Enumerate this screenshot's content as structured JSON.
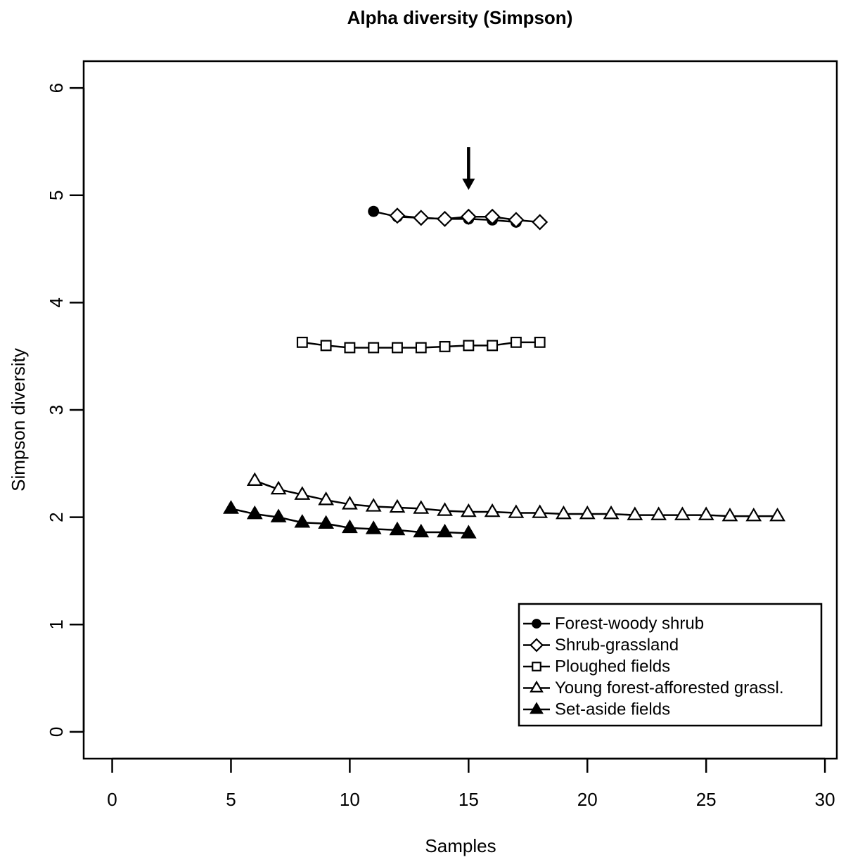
{
  "chart_data": {
    "type": "line",
    "title": "Alpha diversity (Simpson)",
    "xlabel": "Samples",
    "ylabel": "Simpson diversity",
    "xlim": [
      -1.2,
      30.5
    ],
    "ylim": [
      -0.25,
      6.25
    ],
    "xticks": [
      0,
      5,
      10,
      15,
      20,
      25,
      30
    ],
    "yticks": [
      0,
      1,
      2,
      3,
      4,
      5,
      6
    ],
    "xtick_labels": [
      "0",
      "5",
      "10",
      "15",
      "20",
      "25",
      "30"
    ],
    "ytick_labels": [
      "0",
      "1",
      "2",
      "3",
      "4",
      "5",
      "6"
    ],
    "grid": false,
    "legend_position": "bottom-right",
    "annotation": {
      "type": "arrow",
      "x": 15,
      "y_from": 5.45,
      "y_to": 5.05
    },
    "series": [
      {
        "name": "Forest-woody shrub",
        "marker": "circle-filled",
        "x": [
          11,
          12,
          13,
          14,
          15,
          16,
          17
        ],
        "y": [
          4.85,
          4.8,
          4.79,
          4.78,
          4.78,
          4.77,
          4.75
        ]
      },
      {
        "name": "Shrub-grassland",
        "marker": "diamond-open",
        "x": [
          12,
          13,
          14,
          15,
          16,
          17,
          18
        ],
        "y": [
          4.81,
          4.79,
          4.78,
          4.8,
          4.8,
          4.77,
          4.75
        ]
      },
      {
        "name": "Ploughed fields",
        "marker": "square-open",
        "x": [
          8,
          9,
          10,
          11,
          12,
          13,
          14,
          15,
          16,
          17,
          18
        ],
        "y": [
          3.63,
          3.6,
          3.58,
          3.58,
          3.58,
          3.58,
          3.59,
          3.6,
          3.6,
          3.63,
          3.63
        ]
      },
      {
        "name": "Young forest-afforested grassl.",
        "marker": "triangle-open",
        "x": [
          6,
          7,
          8,
          9,
          10,
          11,
          12,
          13,
          14,
          15,
          16,
          17,
          18,
          19,
          20,
          21,
          22,
          23,
          24,
          25,
          26,
          27,
          28
        ],
        "y": [
          2.34,
          2.26,
          2.21,
          2.16,
          2.12,
          2.1,
          2.09,
          2.08,
          2.06,
          2.05,
          2.05,
          2.04,
          2.04,
          2.03,
          2.03,
          2.03,
          2.02,
          2.02,
          2.02,
          2.02,
          2.01,
          2.01,
          2.01
        ]
      },
      {
        "name": "Set-aside fields",
        "marker": "triangle-filled",
        "x": [
          5,
          6,
          7,
          8,
          9,
          10,
          11,
          12,
          13,
          14,
          15
        ],
        "y": [
          2.08,
          2.03,
          2.0,
          1.95,
          1.94,
          1.9,
          1.89,
          1.88,
          1.86,
          1.86,
          1.85
        ]
      }
    ]
  }
}
